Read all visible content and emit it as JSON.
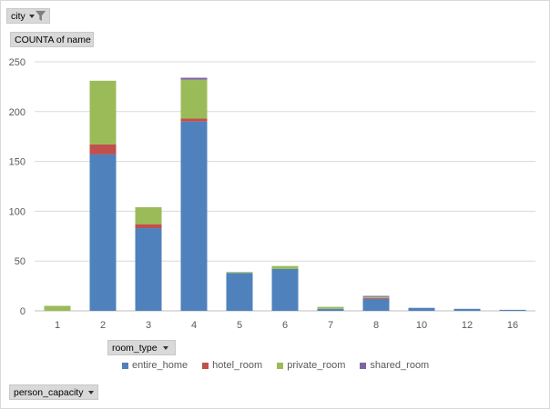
{
  "filter_button": {
    "label": "city",
    "icon": "filter-funnel-icon"
  },
  "value_button": {
    "label": "COUNTA of name"
  },
  "axis_button": {
    "label": "room_type"
  },
  "row_button": {
    "label": "person_capacity"
  },
  "colors": {
    "entire_home": "#4f81bd",
    "hotel_room": "#c0504d",
    "private_room": "#9bbb59",
    "shared_room": "#8064a2",
    "gridline": "#d9d9d9",
    "tick_text": "#595959"
  },
  "chart_data": {
    "type": "bar",
    "stacked": true,
    "title": "",
    "xlabel": "",
    "ylabel": "",
    "ylim": [
      0,
      250
    ],
    "yticks": [
      0,
      50,
      100,
      150,
      200,
      250
    ],
    "grid": true,
    "legend_position": "bottom",
    "categories": [
      "1",
      "2",
      "3",
      "4",
      "5",
      "6",
      "7",
      "8",
      "10",
      "12",
      "16"
    ],
    "series": [
      {
        "name": "entire_home",
        "values": [
          0,
          157,
          83,
          190,
          38,
          42,
          2,
          12,
          3,
          2,
          1
        ]
      },
      {
        "name": "hotel_room",
        "values": [
          0,
          10,
          4,
          3,
          0,
          0,
          0,
          1,
          0,
          0,
          0
        ]
      },
      {
        "name": "private_room",
        "values": [
          5,
          64,
          17,
          39,
          1,
          3,
          2,
          1,
          0,
          0,
          0
        ]
      },
      {
        "name": "shared_room",
        "values": [
          0,
          0,
          0,
          2,
          0,
          0,
          0,
          1,
          0,
          0,
          0
        ]
      }
    ]
  }
}
